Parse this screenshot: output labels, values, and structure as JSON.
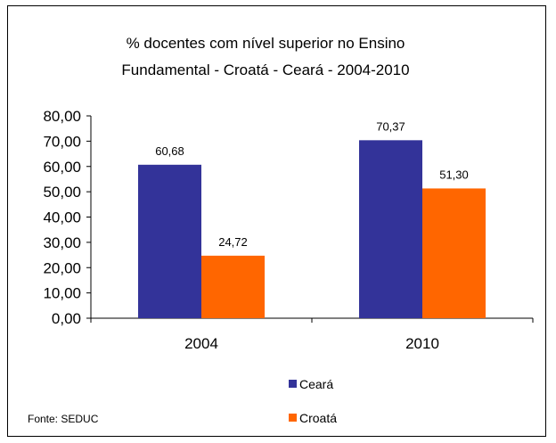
{
  "chart_data": {
    "type": "bar",
    "title_lines": [
      "% docentes com nível  superior no Ensino",
      "Fundamental  - Croatá -  Ceará - 2004-2010"
    ],
    "categories": [
      "2004",
      "2010"
    ],
    "series": [
      {
        "name": "Ceará",
        "values": [
          60.68,
          70.37
        ],
        "labels": [
          "60,68",
          "70,37"
        ],
        "color": "#333399"
      },
      {
        "name": "Croatá",
        "values": [
          24.72,
          51.3
        ],
        "labels": [
          "24,72",
          "51,30"
        ],
        "color": "#FF6600"
      }
    ],
    "ylim": [
      0,
      80
    ],
    "yticks": [
      0,
      10,
      20,
      30,
      40,
      50,
      60,
      70,
      80
    ],
    "ytick_labels": [
      "0,00",
      "10,00",
      "20,00",
      "30,00",
      "40,00",
      "50,00",
      "60,00",
      "70,00",
      "80,00"
    ],
    "xlabel": "",
    "ylabel": "",
    "grid": false,
    "legend_position": "bottom"
  },
  "source_note": "Fonte: SEDUC"
}
